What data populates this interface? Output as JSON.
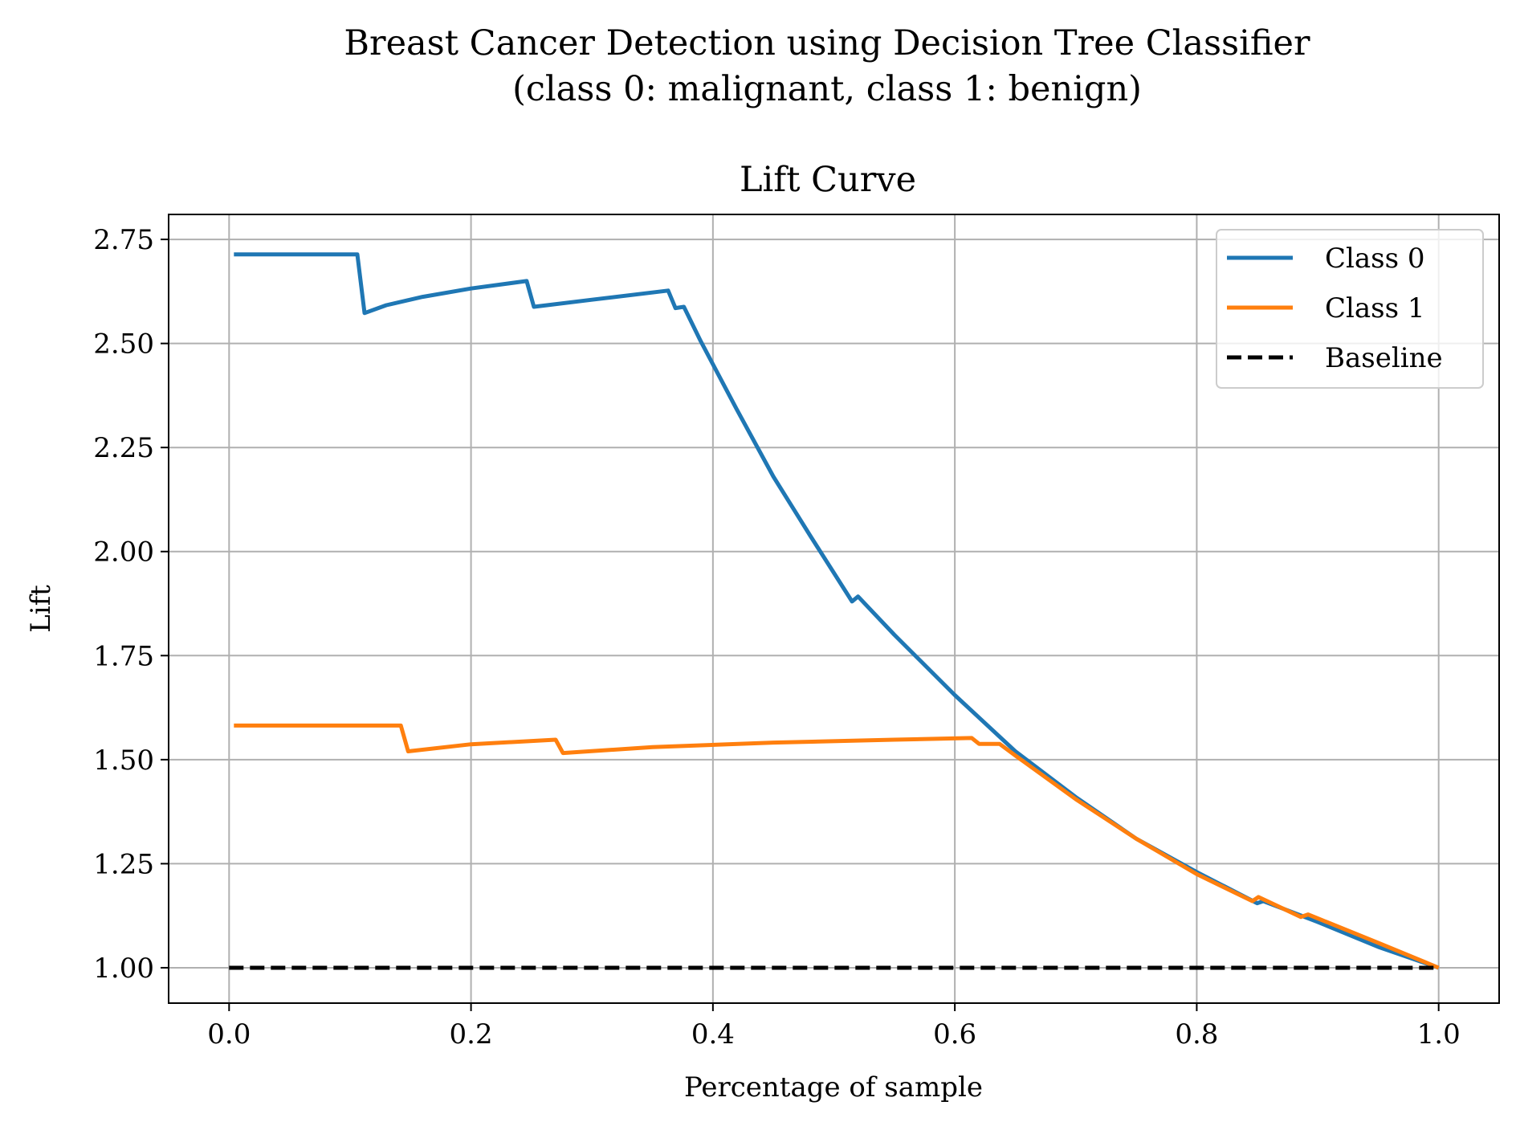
{
  "figure": {
    "suptitle_line1": "Breast Cancer Detection using Decision Tree Classifier",
    "suptitle_line2": "(class 0: malignant, class 1: benign)"
  },
  "chart_data": {
    "type": "line",
    "title": "Lift Curve",
    "xlabel": "Percentage of sample",
    "ylabel": "Lift",
    "xlim": [
      -0.05,
      1.05
    ],
    "ylim": [
      0.915,
      2.81
    ],
    "xticks": [
      "0.0",
      "0.2",
      "0.4",
      "0.6",
      "0.8",
      "1.0"
    ],
    "yticks": [
      "1.00",
      "1.25",
      "1.50",
      "1.75",
      "2.00",
      "2.25",
      "2.50",
      "2.75"
    ],
    "grid": true,
    "legend_position": "top-right",
    "series": [
      {
        "name": "Class 0",
        "color": "#1f77b4",
        "points": [
          [
            0.004,
            2.714
          ],
          [
            0.106,
            2.714
          ],
          [
            0.112,
            2.573
          ],
          [
            0.13,
            2.592
          ],
          [
            0.16,
            2.612
          ],
          [
            0.2,
            2.632
          ],
          [
            0.246,
            2.65
          ],
          [
            0.252,
            2.588
          ],
          [
            0.3,
            2.605
          ],
          [
            0.363,
            2.627
          ],
          [
            0.369,
            2.585
          ],
          [
            0.376,
            2.588
          ],
          [
            0.39,
            2.505
          ],
          [
            0.42,
            2.34
          ],
          [
            0.45,
            2.18
          ],
          [
            0.48,
            2.04
          ],
          [
            0.515,
            1.88
          ],
          [
            0.52,
            1.892
          ],
          [
            0.55,
            1.8
          ],
          [
            0.6,
            1.655
          ],
          [
            0.65,
            1.52
          ],
          [
            0.7,
            1.41
          ],
          [
            0.75,
            1.31
          ],
          [
            0.8,
            1.23
          ],
          [
            0.85,
            1.155
          ],
          [
            0.855,
            1.16
          ],
          [
            0.9,
            1.11
          ],
          [
            0.95,
            1.05
          ],
          [
            1.0,
            1.0
          ]
        ]
      },
      {
        "name": "Class 1",
        "color": "#ff7f0e",
        "points": [
          [
            0.004,
            1.582
          ],
          [
            0.142,
            1.582
          ],
          [
            0.148,
            1.52
          ],
          [
            0.2,
            1.537
          ],
          [
            0.27,
            1.548
          ],
          [
            0.276,
            1.516
          ],
          [
            0.35,
            1.53
          ],
          [
            0.45,
            1.541
          ],
          [
            0.55,
            1.548
          ],
          [
            0.614,
            1.552
          ],
          [
            0.62,
            1.538
          ],
          [
            0.637,
            1.538
          ],
          [
            0.65,
            1.51
          ],
          [
            0.7,
            1.405
          ],
          [
            0.75,
            1.31
          ],
          [
            0.8,
            1.225
          ],
          [
            0.846,
            1.16
          ],
          [
            0.851,
            1.17
          ],
          [
            0.886,
            1.122
          ],
          [
            0.892,
            1.128
          ],
          [
            0.95,
            1.06
          ],
          [
            1.0,
            1.0
          ]
        ]
      },
      {
        "name": "Baseline",
        "color": "#000000",
        "dashed": true,
        "points": [
          [
            0.0,
            1.0
          ],
          [
            1.0,
            1.0
          ]
        ]
      }
    ]
  }
}
